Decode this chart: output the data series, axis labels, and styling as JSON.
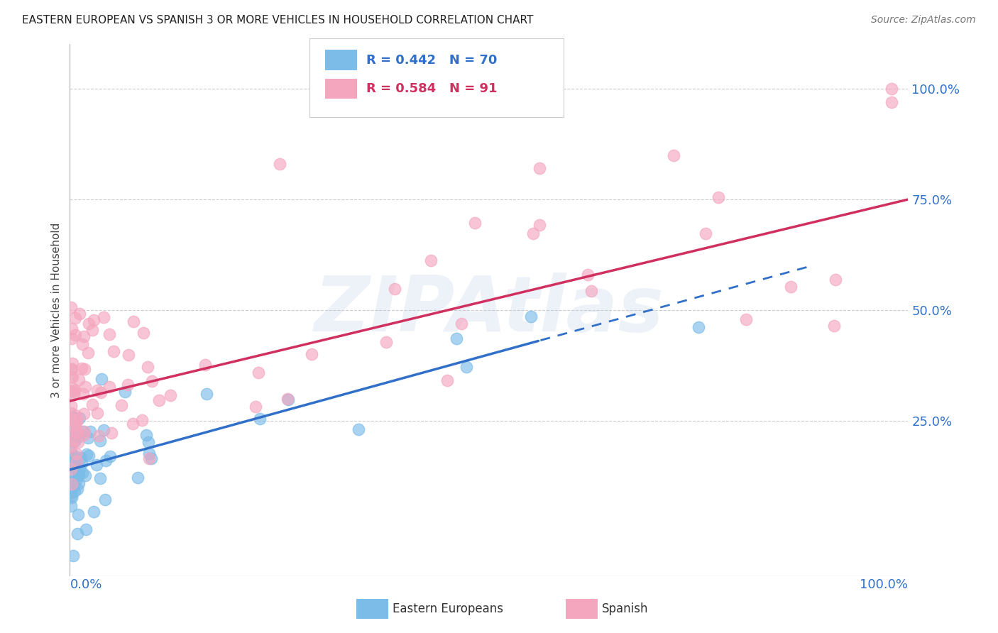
{
  "title": "EASTERN EUROPEAN VS SPANISH 3 OR MORE VEHICLES IN HOUSEHOLD CORRELATION CHART",
  "source": "Source: ZipAtlas.com",
  "ylabel": "3 or more Vehicles in Household",
  "yticks": [
    "25.0%",
    "50.0%",
    "75.0%",
    "100.0%"
  ],
  "ytick_vals": [
    0.25,
    0.5,
    0.75,
    1.0
  ],
  "legend_blue_r": "0.442",
  "legend_blue_n": "70",
  "legend_pink_r": "0.584",
  "legend_pink_n": "91",
  "legend_label_blue": "Eastern Europeans",
  "legend_label_pink": "Spanish",
  "blue_color": "#7bbce8",
  "pink_color": "#f4a6bf",
  "line_blue": "#3070c8",
  "line_pink": "#d03060",
  "axis_color": "#3070c8",
  "watermark": "ZIPAtlas",
  "intercept_blue": 0.14,
  "slope_blue": 0.52,
  "intercept_pink": 0.295,
  "slope_pink": 0.455,
  "dash_cutoff": 0.56,
  "xmin": 0.0,
  "xmax": 1.0,
  "ymin": -0.1,
  "ymax": 1.1
}
